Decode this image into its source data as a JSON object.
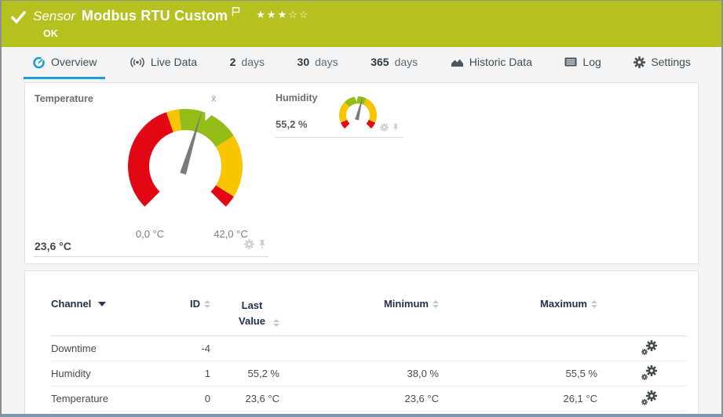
{
  "header": {
    "background": "#b4c11e",
    "kind_label": "Sensor",
    "title": "Modbus RTU Custom",
    "status": "OK",
    "priority_stars_filled": "★★★",
    "priority_stars_empty": "☆☆"
  },
  "tabs": [
    {
      "label": "Overview",
      "active": true
    },
    {
      "label": "Live Data"
    },
    {
      "number": "2",
      "label": "days"
    },
    {
      "number": "30",
      "label": "days"
    },
    {
      "number": "365",
      "label": "days"
    },
    {
      "label": "Historic Data"
    },
    {
      "label": "Log"
    },
    {
      "label": "Settings"
    }
  ],
  "accent": {
    "tab_active": "#1e9cd7",
    "bottom_edge": "#7d98ae"
  },
  "gauges": {
    "temperature": {
      "title": "Temperature",
      "value": 23.6,
      "value_label": "23,6 °C",
      "min": 0,
      "max": 42,
      "min_label": "0,0 °C",
      "max_label": "42,0 °C",
      "average": 24.7,
      "average_marker": "x̄",
      "needle_color": "#7a7a7a",
      "segments": [
        {
          "from": 0,
          "to": 18,
          "color": "#e30613"
        },
        {
          "from": 18,
          "to": 20,
          "color": "#f9c500"
        },
        {
          "from": 20,
          "to": 30,
          "color": "#94be17"
        },
        {
          "from": 30,
          "to": 40,
          "color": "#f9c500"
        },
        {
          "from": 40,
          "to": 42,
          "color": "#e30613"
        }
      ]
    },
    "humidity": {
      "title": "Humidity",
      "value": 55.2,
      "value_label": "55,2 %",
      "min": 0,
      "max": 100,
      "average": 48,
      "needle_color": "#7a7a7a",
      "segments": [
        {
          "from": 0,
          "to": 8,
          "color": "#e30613"
        },
        {
          "from": 8,
          "to": 33,
          "color": "#f9c500"
        },
        {
          "from": 33,
          "to": 60,
          "color": "#94be17"
        },
        {
          "from": 60,
          "to": 92,
          "color": "#f9c500"
        },
        {
          "from": 92,
          "to": 100,
          "color": "#e30613"
        }
      ]
    }
  },
  "channels_table": {
    "headers": {
      "channel": "Channel",
      "id": "ID",
      "last_value": "Last Value",
      "minimum": "Minimum",
      "maximum": "Maximum"
    },
    "rows": [
      {
        "channel": "Downtime",
        "id": "-4",
        "last_value": "",
        "minimum": "",
        "maximum": ""
      },
      {
        "channel": "Humidity",
        "id": "1",
        "last_value": "55,2 %",
        "minimum": "38,0 %",
        "maximum": "55,5 %"
      },
      {
        "channel": "Temperature",
        "id": "0",
        "last_value": "23,6 °C",
        "minimum": "23,6 °C",
        "maximum": "26,1 °C"
      }
    ]
  }
}
